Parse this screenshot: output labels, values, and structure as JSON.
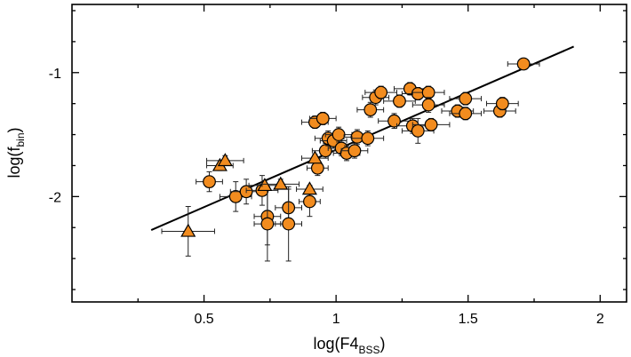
{
  "chart_data": {
    "type": "scatter",
    "title": "",
    "xlabel": {
      "main": "log(F4",
      "sub": "BSS",
      "close": ")"
    },
    "ylabel": {
      "main": "log(f",
      "sub": "bin",
      "close": ")"
    },
    "xlim": [
      0.0,
      2.1
    ],
    "ylim": [
      -2.85,
      -0.45
    ],
    "xticks": [
      {
        "value": 0.5,
        "label": "0.5"
      },
      {
        "value": 1.0,
        "label": "1"
      },
      {
        "value": 1.5,
        "label": "1.5"
      },
      {
        "value": 2.0,
        "label": "2"
      }
    ],
    "yticks": [
      {
        "value": -1,
        "label": "-1"
      },
      {
        "value": -2,
        "label": "-2"
      }
    ],
    "marker_color": "#f28c1f",
    "marker_edge": "#000000",
    "fit_line": {
      "x": [
        0.3,
        1.9
      ],
      "y": [
        -2.27,
        -0.79
      ]
    },
    "series": [
      {
        "name": "circles",
        "marker": "circle",
        "points": [
          {
            "x": 0.52,
            "y": -1.88,
            "xerr": 0.05,
            "yerr": 0.08
          },
          {
            "x": 0.62,
            "y": -2.0,
            "xerr": 0.06,
            "yerr": 0.12
          },
          {
            "x": 0.66,
            "y": -1.96,
            "xerr": 0.06,
            "yerr": 0.1
          },
          {
            "x": 0.72,
            "y": -1.95,
            "xerr": 0.06,
            "yerr": 0.12
          },
          {
            "x": 0.74,
            "y": -2.16,
            "xerr": 0.05,
            "yerr": 0.23
          },
          {
            "x": 0.74,
            "y": -2.22,
            "xerr": 0.05,
            "yerr": 0.3
          },
          {
            "x": 0.82,
            "y": -2.09,
            "xerr": 0.05,
            "yerr": 0.15
          },
          {
            "x": 0.82,
            "y": -2.22,
            "xerr": 0.05,
            "yerr": 0.3
          },
          {
            "x": 0.9,
            "y": -2.04,
            "xerr": 0.04,
            "yerr": 0.12
          },
          {
            "x": 0.92,
            "y": -1.4,
            "xerr": 0.05,
            "yerr": 0.05
          },
          {
            "x": 0.93,
            "y": -1.77,
            "xerr": 0.04,
            "yerr": 0.06
          },
          {
            "x": 0.95,
            "y": -1.37,
            "xerr": 0.05,
            "yerr": 0.05
          },
          {
            "x": 0.96,
            "y": -1.63,
            "xerr": 0.05,
            "yerr": 0.06
          },
          {
            "x": 0.97,
            "y": -1.53,
            "xerr": 0.05,
            "yerr": 0.06
          },
          {
            "x": 0.99,
            "y": -1.55,
            "xerr": 0.05,
            "yerr": 0.06
          },
          {
            "x": 1.01,
            "y": -1.5,
            "xerr": 0.05,
            "yerr": 0.06
          },
          {
            "x": 1.02,
            "y": -1.61,
            "xerr": 0.05,
            "yerr": 0.06
          },
          {
            "x": 1.04,
            "y": -1.65,
            "xerr": 0.05,
            "yerr": 0.06
          },
          {
            "x": 1.07,
            "y": -1.63,
            "xerr": 0.05,
            "yerr": 0.06
          },
          {
            "x": 1.08,
            "y": -1.52,
            "xerr": 0.05,
            "yerr": 0.06
          },
          {
            "x": 1.12,
            "y": -1.53,
            "xerr": 0.06,
            "yerr": 0.06
          },
          {
            "x": 1.13,
            "y": -1.3,
            "xerr": 0.05,
            "yerr": 0.06
          },
          {
            "x": 1.15,
            "y": -1.2,
            "xerr": 0.05,
            "yerr": 0.06
          },
          {
            "x": 1.17,
            "y": -1.16,
            "xerr": 0.06,
            "yerr": 0.05
          },
          {
            "x": 1.22,
            "y": -1.39,
            "xerr": 0.06,
            "yerr": 0.06
          },
          {
            "x": 1.24,
            "y": -1.23,
            "xerr": 0.06,
            "yerr": 0.05
          },
          {
            "x": 1.28,
            "y": -1.13,
            "xerr": 0.06,
            "yerr": 0.05
          },
          {
            "x": 1.29,
            "y": -1.43,
            "xerr": 0.06,
            "yerr": 0.06
          },
          {
            "x": 1.31,
            "y": -1.17,
            "xerr": 0.06,
            "yerr": 0.05
          },
          {
            "x": 1.31,
            "y": -1.47,
            "xerr": 0.06,
            "yerr": 0.1
          },
          {
            "x": 1.35,
            "y": -1.16,
            "xerr": 0.06,
            "yerr": 0.05
          },
          {
            "x": 1.35,
            "y": -1.26,
            "xerr": 0.06,
            "yerr": 0.06
          },
          {
            "x": 1.36,
            "y": -1.42,
            "xerr": 0.07,
            "yerr": 0.05
          },
          {
            "x": 1.46,
            "y": -1.31,
            "xerr": 0.06,
            "yerr": 0.05
          },
          {
            "x": 1.49,
            "y": -1.33,
            "xerr": 0.06,
            "yerr": 0.05
          },
          {
            "x": 1.49,
            "y": -1.21,
            "xerr": 0.06,
            "yerr": 0.05
          },
          {
            "x": 1.62,
            "y": -1.31,
            "xerr": 0.06,
            "yerr": 0.05
          },
          {
            "x": 1.63,
            "y": -1.25,
            "xerr": 0.06,
            "yerr": 0.05
          },
          {
            "x": 1.71,
            "y": -0.93,
            "xerr": 0.06,
            "yerr": 0.03
          }
        ]
      },
      {
        "name": "triangles",
        "marker": "triangle",
        "points": [
          {
            "x": 0.44,
            "y": -2.28,
            "xerr": 0.1,
            "yerr": 0.2
          },
          {
            "x": 0.56,
            "y": -1.75,
            "xerr": 0.05,
            "yerr": 0.04
          },
          {
            "x": 0.58,
            "y": -1.71,
            "xerr": 0.07,
            "yerr": 0.04
          },
          {
            "x": 0.73,
            "y": -1.91,
            "xerr": 0.06,
            "yerr": 0.04
          },
          {
            "x": 0.79,
            "y": -1.9,
            "xerr": 0.07,
            "yerr": 0.04
          },
          {
            "x": 0.9,
            "y": -1.94,
            "xerr": 0.05,
            "yerr": 0.03
          },
          {
            "x": 0.92,
            "y": -1.69,
            "xerr": 0.05,
            "yerr": 0.03
          }
        ]
      }
    ]
  }
}
